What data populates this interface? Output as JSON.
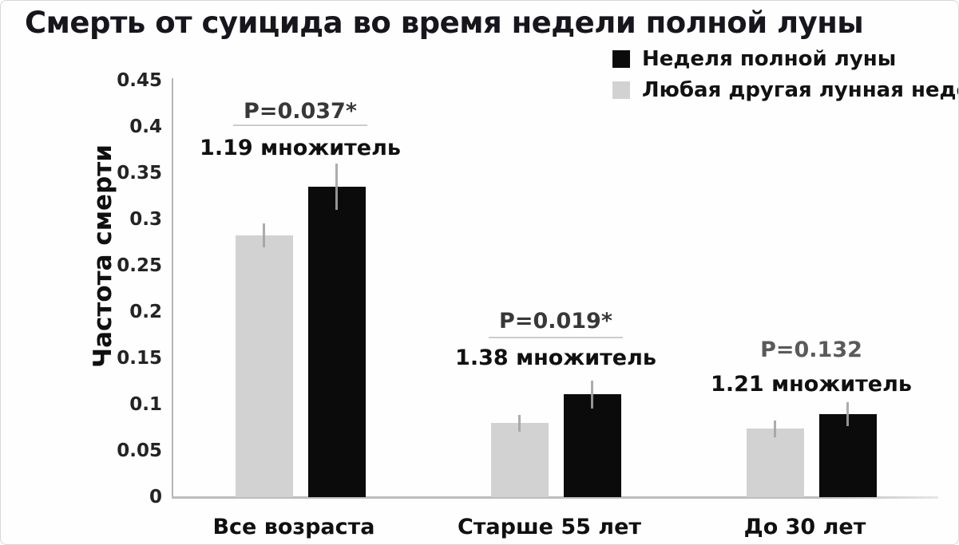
{
  "title": "Смерть от суицида во время недели полной луны",
  "legend": {
    "items": [
      {
        "label": "Неделя полной луны",
        "color": "#0b0b0b"
      },
      {
        "label": "Любая другая лунная неделя",
        "color": "#d2d2d2"
      }
    ]
  },
  "chart_data": {
    "type": "bar",
    "title": "Смерть от суицида во время недели полной луны",
    "xlabel": "",
    "ylabel": "Частота смерти",
    "ylim": [
      0,
      0.45
    ],
    "yticks": [
      0,
      0.05,
      0.1,
      0.15,
      0.2,
      0.25,
      0.3,
      0.35,
      0.4,
      0.45
    ],
    "ytick_labels": [
      "0",
      "0.05",
      "0.1",
      "0.15",
      "0.2",
      "0.25",
      "0.3",
      "0.35",
      "0.4",
      "0.45"
    ],
    "grid": false,
    "legend_position": "top-right",
    "categories": [
      "Все возраста",
      "Старше 55 лет",
      "До 30 лет"
    ],
    "series": [
      {
        "name": "Любая другая лунная неделя",
        "color": "#d2d2d2",
        "values": [
          0.283,
          0.08,
          0.074
        ],
        "errors": [
          0.013,
          0.009,
          0.009
        ]
      },
      {
        "name": "Неделя полной луны",
        "color": "#0b0b0b",
        "values": [
          0.335,
          0.111,
          0.09
        ],
        "errors": [
          0.025,
          0.015,
          0.013
        ]
      }
    ],
    "annotations": [
      {
        "p_label": "P=0.037*",
        "multiplier_label": "1.19 множитель",
        "significant": true
      },
      {
        "p_label": "P=0.019*",
        "multiplier_label": "1.38 множитель",
        "significant": true
      },
      {
        "p_label": "P=0.132",
        "multiplier_label": "1.21 множитель",
        "significant": false
      }
    ],
    "colors": {
      "significant_p_text": "#383838",
      "nonsignificant_p_text": "#5a5a5a",
      "error_bar": "#a3a3a3",
      "axis": "#b5b5b5"
    }
  }
}
